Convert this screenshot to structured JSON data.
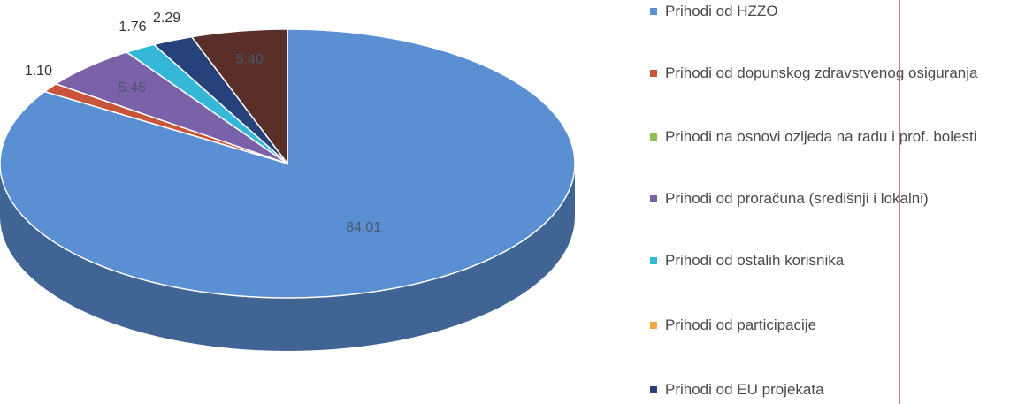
{
  "chart_data": {
    "type": "pie",
    "title": "",
    "legend_position": "right",
    "slices": [
      {
        "name": "Prihodi od HZZO",
        "value": 84.01,
        "label": "84.01",
        "color": "#5b8fd4"
      },
      {
        "name": "Prihodi od dopunskog zdravstvenog osiguranja",
        "value": 1.1,
        "label": "1.10",
        "color": "#c8553a"
      },
      {
        "name": "Prihodi na osnovi ozljeda na radu i prof. bolesti",
        "value": 0,
        "label": "",
        "color": "#8cc152"
      },
      {
        "name": "Prihodi od proračuna (središnji i lokalni)",
        "value": 5.45,
        "label": "5.45",
        "color": "#7b62a8"
      },
      {
        "name": "Prihodi od ostalih korisnika",
        "value": 1.76,
        "label": "1.76",
        "color": "#35b8d8"
      },
      {
        "name": "Prihodi od participacije",
        "value": 0,
        "label": "",
        "color": "#f0a540"
      },
      {
        "name": "Prihodi od EU projekata",
        "value": 2.29,
        "label": "2.29",
        "color": "#27417a"
      },
      {
        "name": "",
        "value": 5.4,
        "label": "5.40",
        "color": "#5a2f28"
      }
    ]
  }
}
